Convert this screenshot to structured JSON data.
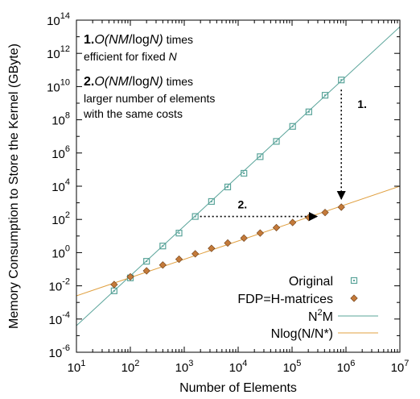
{
  "chart_data": {
    "type": "scatter",
    "title": "",
    "xlabel": "Number of Elements",
    "ylabel": "Memory Consumption to Store the Kernel (GByte)",
    "xscale": "log",
    "yscale": "log",
    "xlim": [
      10,
      10000000
    ],
    "ylim": [
      1e-06,
      100000000000000
    ],
    "grid": false,
    "legend_position": "bottom-right",
    "x_ticks": [
      {
        "value": 10,
        "base": "10",
        "exp": "1"
      },
      {
        "value": 100,
        "base": "10",
        "exp": "2"
      },
      {
        "value": 1000,
        "base": "10",
        "exp": "3"
      },
      {
        "value": 10000,
        "base": "10",
        "exp": "4"
      },
      {
        "value": 100000,
        "base": "10",
        "exp": "5"
      },
      {
        "value": 1000000,
        "base": "10",
        "exp": "6"
      },
      {
        "value": 10000000,
        "base": "10",
        "exp": "7"
      }
    ],
    "y_ticks": [
      {
        "value": 1e-06,
        "base": "10",
        "exp": "-6"
      },
      {
        "value": 0.0001,
        "base": "10",
        "exp": "-4"
      },
      {
        "value": 0.01,
        "base": "10",
        "exp": "-2"
      },
      {
        "value": 1,
        "base": "10",
        "exp": "0"
      },
      {
        "value": 100,
        "base": "10",
        "exp": "2"
      },
      {
        "value": 10000,
        "base": "10",
        "exp": "4"
      },
      {
        "value": 1000000,
        "base": "10",
        "exp": "6"
      },
      {
        "value": 100000000,
        "base": "10",
        "exp": "8"
      },
      {
        "value": 10000000000,
        "base": "10",
        "exp": "10"
      },
      {
        "value": 1000000000000,
        "base": "10",
        "exp": "12"
      },
      {
        "value": 100000000000000,
        "base": "10",
        "exp": "14"
      }
    ],
    "series": [
      {
        "name": "Original",
        "kind": "points",
        "marker": "square",
        "color": "#5aa49a",
        "x": [
          50,
          100,
          200,
          400,
          800,
          1600,
          3200,
          6400,
          12800,
          25600,
          51200,
          102400,
          204800,
          409600,
          819200
        ],
        "y": [
          0.005,
          0.03,
          0.3,
          2.5,
          15,
          150,
          1200,
          9000,
          60000,
          600000,
          5000000,
          40000000,
          300000000,
          3000000000,
          25000000000
        ]
      },
      {
        "name": "FDP=H-matrices",
        "kind": "points",
        "marker": "diamond",
        "color": "#c47a3a",
        "x": [
          50,
          100,
          200,
          400,
          800,
          1600,
          3200,
          6400,
          12800,
          25600,
          51200,
          102400,
          204800,
          409600,
          819200
        ],
        "y": [
          0.012,
          0.035,
          0.08,
          0.18,
          0.4,
          0.85,
          1.8,
          3.8,
          7.5,
          15,
          32,
          65,
          130,
          260,
          550
        ]
      },
      {
        "name_base": "N",
        "name_sup": "2",
        "name_tail": "M",
        "kind": "line",
        "color": "#5aa49a",
        "x": [
          10,
          10000000
        ],
        "y": [
          4e-05,
          40000000000000
        ]
      },
      {
        "name": "Nlog(N/N*)",
        "kind": "line",
        "color": "#e0a040",
        "x": [
          10,
          10000000
        ],
        "y": [
          0.0025,
          10000
        ]
      }
    ],
    "annotations": [
      {
        "num": "1.",
        "lines": [
          [
            {
              "t": "O(",
              "i": true
            },
            {
              "t": "NM",
              "i": true
            },
            {
              "t": "/log",
              "i": false
            },
            {
              "t": "N",
              "i": true
            },
            {
              "t": ")",
              "i": true
            },
            {
              "t": " times",
              "i": false,
              "small": true
            }
          ],
          [
            {
              "t": "efficient for fixed ",
              "i": false,
              "small": true
            },
            {
              "t": "N",
              "i": true,
              "small": true
            }
          ]
        ]
      },
      {
        "num": "2.",
        "lines": [
          [
            {
              "t": "O(",
              "i": true
            },
            {
              "t": "NM",
              "i": true
            },
            {
              "t": "/log",
              "i": false
            },
            {
              "t": "N",
              "i": true
            },
            {
              "t": ")",
              "i": true
            },
            {
              "t": " times",
              "i": false,
              "small": true
            }
          ],
          [
            {
              "t": "larger number of elements",
              "i": false,
              "small": true
            }
          ],
          [
            {
              "t": "with the same costs",
              "i": false,
              "small": true
            }
          ]
        ]
      }
    ],
    "arrows": [
      {
        "label": "1.",
        "from": [
          819200,
          25000000000
        ],
        "to": [
          819200,
          550
        ],
        "direction": "down"
      },
      {
        "label": "2.",
        "from": [
          1600,
          150
        ],
        "to": [
          409600,
          150
        ],
        "direction": "right"
      }
    ]
  }
}
